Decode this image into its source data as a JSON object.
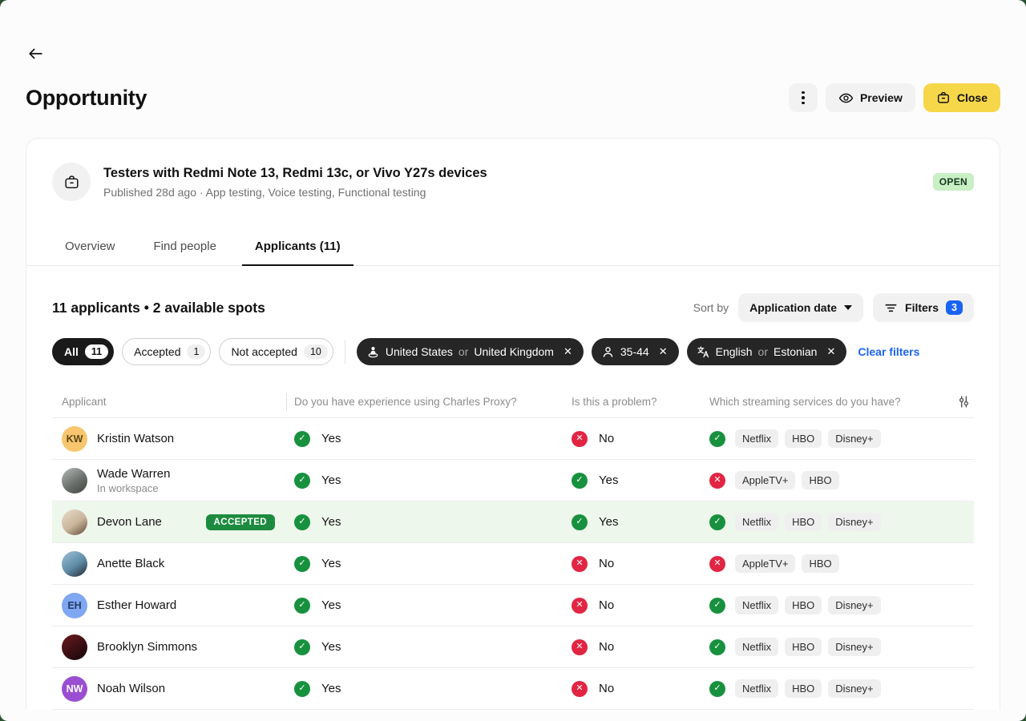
{
  "page": {
    "title": "Opportunity"
  },
  "header_actions": {
    "preview_label": "Preview",
    "close_label": "Close"
  },
  "opportunity": {
    "title": "Testers with Redmi Note 13, Redmi 13c, or Vivo Y27s devices",
    "meta": "Published 28d ago · App testing, Voice testing, Functional testing",
    "status_badge": "OPEN"
  },
  "tabs": [
    {
      "label": "Overview",
      "active": false
    },
    {
      "label": "Find people",
      "active": false
    },
    {
      "label": "Applicants (11)",
      "active": true
    }
  ],
  "summary": {
    "text": "11 applicants • 2 available spots",
    "sort_by_label": "Sort by",
    "sort_value": "Application date",
    "filters_label": "Filters",
    "filters_count": "3"
  },
  "status_filters": [
    {
      "label": "All",
      "count": "11",
      "active": true
    },
    {
      "label": "Accepted",
      "count": "1",
      "active": false
    },
    {
      "label": "Not accepted",
      "count": "10",
      "active": false
    }
  ],
  "filter_chips": {
    "location": {
      "icon": "street-view-icon",
      "value1": "United States",
      "conjunction": "or",
      "value2": "United Kingdom"
    },
    "age": {
      "icon": "person-icon",
      "value1": "35-44"
    },
    "language": {
      "icon": "translate-icon",
      "value1": "English",
      "conjunction": "or",
      "value2": "Estonian"
    }
  },
  "clear_filters_label": "Clear filters",
  "table": {
    "columns": [
      "Applicant",
      "Do you have experience using Charles Proxy?",
      "Is this a problem?",
      "Which streaming services do you have?"
    ],
    "rows": [
      {
        "name": "Kristin Watson",
        "subtitle": "",
        "badge": "",
        "highlighted": false,
        "avatar": {
          "type": "initials",
          "initials": "KW",
          "color": "#f7c66f",
          "text_color": "#5d4715"
        },
        "experience": "Yes",
        "experience_positive": true,
        "problem": "No",
        "problem_positive": false,
        "services_positive": true,
        "services": [
          "Netflix",
          "HBO",
          "Disney+"
        ]
      },
      {
        "name": "Wade Warren",
        "subtitle": "In workspace",
        "badge": "",
        "highlighted": false,
        "avatar": {
          "type": "photo",
          "colors": [
            "#b9bdb9",
            "#6b706d",
            "#41453f"
          ]
        },
        "experience": "Yes",
        "experience_positive": true,
        "problem": "Yes",
        "problem_positive": true,
        "services_positive": false,
        "services": [
          "AppleTV+",
          "HBO"
        ]
      },
      {
        "name": "Devon Lane",
        "subtitle": "",
        "badge": "ACCEPTED",
        "highlighted": true,
        "avatar": {
          "type": "photo",
          "colors": [
            "#e8ddcc",
            "#c9b49a",
            "#5d4a38"
          ]
        },
        "experience": "Yes",
        "experience_positive": true,
        "problem": "Yes",
        "problem_positive": true,
        "services_positive": true,
        "services": [
          "Netflix",
          "HBO",
          "Disney+"
        ]
      },
      {
        "name": "Anette Black",
        "subtitle": "",
        "badge": "",
        "highlighted": false,
        "avatar": {
          "type": "photo",
          "colors": [
            "#9fc3d8",
            "#5d8aa6",
            "#23272e"
          ]
        },
        "experience": "Yes",
        "experience_positive": true,
        "problem": "No",
        "problem_positive": false,
        "services_positive": false,
        "services": [
          "AppleTV+",
          "HBO"
        ]
      },
      {
        "name": "Esther Howard",
        "subtitle": "",
        "badge": "",
        "highlighted": false,
        "avatar": {
          "type": "initials",
          "initials": "EH",
          "color": "#7fa7f2",
          "text_color": "#243b66"
        },
        "experience": "Yes",
        "experience_positive": true,
        "problem": "No",
        "problem_positive": false,
        "services_positive": true,
        "services": [
          "Netflix",
          "HBO",
          "Disney+"
        ]
      },
      {
        "name": "Brooklyn Simmons",
        "subtitle": "",
        "badge": "",
        "highlighted": false,
        "avatar": {
          "type": "photo",
          "colors": [
            "#6e1a1c",
            "#3a0f14",
            "#120507"
          ]
        },
        "experience": "Yes",
        "experience_positive": true,
        "problem": "No",
        "problem_positive": false,
        "services_positive": true,
        "services": [
          "Netflix",
          "HBO",
          "Disney+"
        ]
      },
      {
        "name": "Noah Wilson",
        "subtitle": "",
        "badge": "",
        "highlighted": false,
        "avatar": {
          "type": "initials",
          "initials": "NW",
          "color": "#9a4fd2",
          "text_color": "#ffffff"
        },
        "experience": "Yes",
        "experience_positive": true,
        "problem": "No",
        "problem_positive": false,
        "services_positive": true,
        "services": [
          "Netflix",
          "HBO",
          "Disney+"
        ]
      }
    ]
  },
  "icons": {
    "back-arrow-icon": "left arrow",
    "kebab-menu-icon": "vertical three dots",
    "eye-icon": "preview eye",
    "briefcase-icon": "briefcase / close opportunity",
    "street-view-icon": "person on ellipse (location)",
    "person-icon": "person outline (age)",
    "translate-icon": "language translate",
    "close-x-icon": "✕",
    "filter-lines-icon": "three funnel lines",
    "chevron-down-icon": "▾",
    "sliders-icon": "vertical sliders (column settings)",
    "check-icon": "✓",
    "cross-icon": "✕"
  },
  "colors": {
    "success_green": "#18913f",
    "danger_red": "#e12543",
    "open_badge_bg": "#c9efc5",
    "accepted_badge_bg": "#1d8b3f",
    "close_button_bg": "#f6d74a",
    "accent_blue": "#1a63f2",
    "row_highlight_bg": "#eef7ec",
    "chip_bg": "#262626",
    "active_pill_bg": "#1a1a1a"
  }
}
